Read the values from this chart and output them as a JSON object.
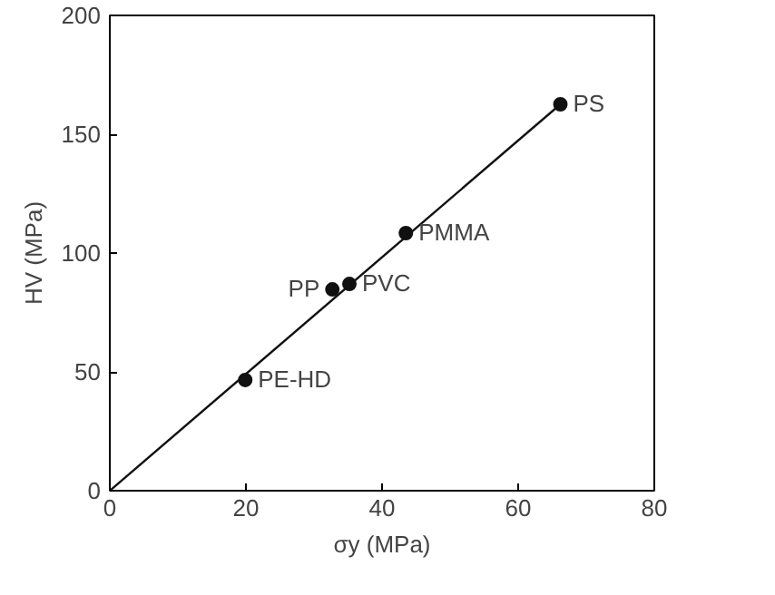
{
  "chart_data": {
    "type": "scatter",
    "xlabel": "σy (MPa)",
    "ylabel": "HV (MPa)",
    "xlim": [
      0,
      80
    ],
    "ylim": [
      0,
      200
    ],
    "xticks": [
      0,
      20,
      40,
      60,
      80
    ],
    "yticks": [
      0,
      50,
      100,
      150,
      200
    ],
    "grid": false,
    "marker": "circle",
    "series": [
      {
        "color": "#111111",
        "x": [
          19.9,
          32.7,
          35.2,
          43.5,
          66.2
        ],
        "values": [
          46.6,
          84.7,
          87,
          108.4,
          162.6
        ]
      },
      {
        "type": "line",
        "marker": "none",
        "color": "#111111",
        "x": [
          0,
          66.2
        ],
        "values": [
          0,
          162.6
        ]
      }
    ],
    "annotations": [
      {
        "text": "PE-HD",
        "x": 19.9,
        "y": 46.6
      },
      {
        "text": "PP",
        "x": 32.7,
        "y": 84.7
      },
      {
        "text": "PVC",
        "x": 35.2,
        "y": 87
      },
      {
        "text": "PMMA",
        "x": 43.5,
        "y": 108.4
      },
      {
        "text": "PS",
        "x": 66.2,
        "y": 162.6
      }
    ]
  }
}
